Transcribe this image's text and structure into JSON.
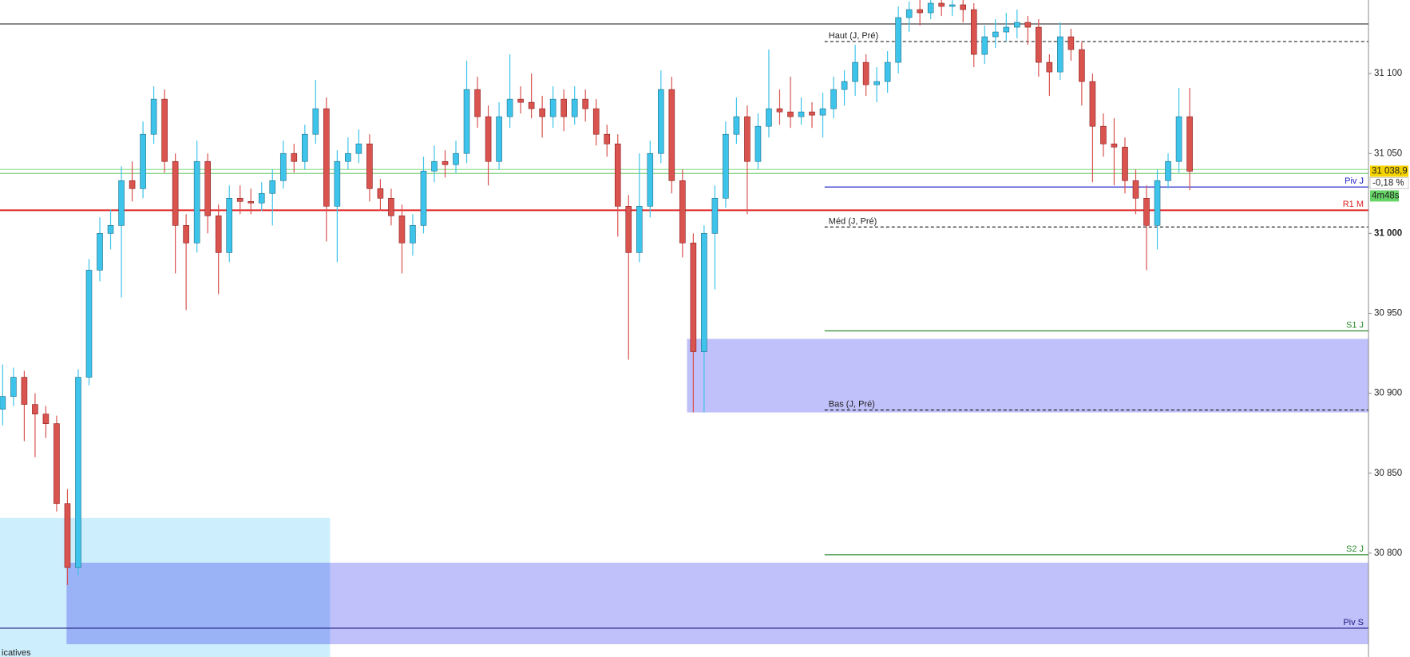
{
  "chart_data": {
    "type": "candlestick",
    "ylim": [
      30735,
      31146
    ],
    "yticks": [
      {
        "value": 30800,
        "label": "30 800"
      },
      {
        "value": 30850,
        "label": "30 850"
      },
      {
        "value": 30900,
        "label": "30 900"
      },
      {
        "value": 30950,
        "label": "30 950"
      },
      {
        "value": 31000,
        "label": "31 000"
      },
      {
        "value": 31050,
        "label": "31 050"
      },
      {
        "value": 31100,
        "label": "31 100"
      }
    ],
    "up_color": "#3ec4ea",
    "down_color": "#d9534f",
    "ohlc": [
      [
        30890,
        30918,
        30880,
        30898
      ],
      [
        30898,
        30916,
        30892,
        30910
      ],
      [
        30910,
        30914,
        30870,
        30893
      ],
      [
        30893,
        30900,
        30860,
        30887
      ],
      [
        30887,
        30892,
        30872,
        30881
      ],
      [
        30881,
        30886,
        30826,
        30831
      ],
      [
        30831,
        30840,
        30780,
        30791
      ],
      [
        30791,
        30915,
        30786,
        30910
      ],
      [
        30910,
        30984,
        30905,
        30977
      ],
      [
        30977,
        31010,
        30970,
        31000
      ],
      [
        31000,
        31015,
        30990,
        31005
      ],
      [
        31005,
        31042,
        30960,
        31033
      ],
      [
        31033,
        31045,
        31020,
        31028
      ],
      [
        31028,
        31070,
        31022,
        31062
      ],
      [
        31062,
        31092,
        31056,
        31084
      ],
      [
        31084,
        31090,
        31038,
        31045
      ],
      [
        31045,
        31050,
        30975,
        31005
      ],
      [
        31005,
        31012,
        30952,
        30994
      ],
      [
        30994,
        31058,
        30988,
        31045
      ],
      [
        31045,
        31050,
        31000,
        31011
      ],
      [
        31011,
        31018,
        30962,
        30988
      ],
      [
        30988,
        31030,
        30982,
        31022
      ],
      [
        31022,
        31030,
        31012,
        31020
      ],
      [
        31020,
        31028,
        31012,
        31019
      ],
      [
        31019,
        31032,
        31014,
        31025
      ],
      [
        31025,
        31040,
        31005,
        31033
      ],
      [
        31033,
        31058,
        31028,
        31050
      ],
      [
        31050,
        31056,
        31038,
        31045
      ],
      [
        31045,
        31068,
        31040,
        31062
      ],
      [
        31062,
        31096,
        31056,
        31078
      ],
      [
        31078,
        31085,
        30995,
        31017
      ],
      [
        31017,
        31052,
        30982,
        31045
      ],
      [
        31045,
        31060,
        31040,
        31050
      ],
      [
        31050,
        31065,
        31044,
        31056
      ],
      [
        31056,
        31062,
        31020,
        31028
      ],
      [
        31028,
        31034,
        31014,
        31022
      ],
      [
        31022,
        31028,
        31005,
        31011
      ],
      [
        31011,
        31018,
        30975,
        30994
      ],
      [
        30994,
        31012,
        30986,
        31005
      ],
      [
        31005,
        31048,
        31000,
        31039
      ],
      [
        31039,
        31055,
        31032,
        31045
      ],
      [
        31045,
        31052,
        31035,
        31043
      ],
      [
        31043,
        31058,
        31038,
        31050
      ],
      [
        31050,
        31108,
        31044,
        31090
      ],
      [
        31090,
        31098,
        31066,
        31073
      ],
      [
        31073,
        31080,
        31030,
        31045
      ],
      [
        31045,
        31082,
        31040,
        31073
      ],
      [
        31073,
        31112,
        31066,
        31084
      ],
      [
        31084,
        31092,
        31075,
        31082
      ],
      [
        31082,
        31100,
        31072,
        31078
      ],
      [
        31078,
        31086,
        31060,
        31073
      ],
      [
        31073,
        31092,
        31066,
        31084
      ],
      [
        31084,
        31090,
        31064,
        31073
      ],
      [
        31073,
        31092,
        31068,
        31084
      ],
      [
        31084,
        31090,
        31070,
        31078
      ],
      [
        31078,
        31084,
        31055,
        31062
      ],
      [
        31062,
        31068,
        31048,
        31056
      ],
      [
        31056,
        31062,
        30998,
        31017
      ],
      [
        31017,
        31024,
        30921,
        30988
      ],
      [
        30988,
        31050,
        30982,
        31017
      ],
      [
        31017,
        31058,
        31010,
        31050
      ],
      [
        31050,
        31102,
        31044,
        31090
      ],
      [
        31090,
        31098,
        31025,
        31033
      ],
      [
        31033,
        31040,
        30985,
        30994
      ],
      [
        30994,
        31000,
        30888,
        30926
      ],
      [
        30926,
        31005,
        30888,
        31000
      ],
      [
        31000,
        31030,
        30965,
        31022
      ],
      [
        31022,
        31070,
        31016,
        31062
      ],
      [
        31062,
        31085,
        31056,
        31073
      ],
      [
        31073,
        31080,
        31012,
        31045
      ],
      [
        31045,
        31075,
        31040,
        31067
      ],
      [
        31067,
        31115,
        31060,
        31078
      ],
      [
        31078,
        31090,
        31068,
        31076
      ],
      [
        31076,
        31098,
        31066,
        31073
      ],
      [
        31073,
        31085,
        31068,
        31076
      ],
      [
        31076,
        31082,
        31066,
        31074
      ],
      [
        31074,
        31088,
        31060,
        31078
      ],
      [
        31078,
        31098,
        31072,
        31090
      ],
      [
        31090,
        31102,
        31080,
        31095
      ],
      [
        31095,
        31118,
        31086,
        31107
      ],
      [
        31107,
        31112,
        31086,
        31093
      ],
      [
        31093,
        31104,
        31082,
        31095
      ],
      [
        31095,
        31114,
        31088,
        31107
      ],
      [
        31107,
        31142,
        31100,
        31135
      ],
      [
        31135,
        31145,
        31126,
        31140
      ],
      [
        31140,
        31146,
        31130,
        31138
      ],
      [
        31138,
        31146,
        31134,
        31144
      ],
      [
        31144,
        31146,
        31136,
        31142
      ],
      [
        31142,
        31146,
        31136,
        31143
      ],
      [
        31143,
        31146,
        31132,
        31140
      ],
      [
        31140,
        31144,
        31104,
        31112
      ],
      [
        31112,
        31130,
        31106,
        31123
      ],
      [
        31123,
        31134,
        31116,
        31126
      ],
      [
        31126,
        31138,
        31120,
        31129
      ],
      [
        31129,
        31140,
        31122,
        31132
      ],
      [
        31132,
        31136,
        31118,
        31129
      ],
      [
        31129,
        31134,
        31098,
        31107
      ],
      [
        31107,
        31112,
        31086,
        31101
      ],
      [
        31101,
        31132,
        31096,
        31123
      ],
      [
        31123,
        31128,
        31108,
        31115
      ],
      [
        31115,
        31120,
        31080,
        31095
      ],
      [
        31095,
        31100,
        31032,
        31067
      ],
      [
        31067,
        31075,
        31048,
        31056
      ],
      [
        31056,
        31072,
        31030,
        31054
      ],
      [
        31054,
        31060,
        31025,
        31033
      ],
      [
        31033,
        31040,
        31012,
        31022
      ],
      [
        31022,
        31030,
        30977,
        31005
      ],
      [
        31005,
        31040,
        30990,
        31033
      ],
      [
        31033,
        31050,
        31028,
        31045
      ],
      [
        31045,
        31091,
        31038,
        31073
      ],
      [
        31073,
        31091,
        31027,
        31038.9
      ]
    ],
    "zones": [
      {
        "from": 30822,
        "to": 30735,
        "color": "#cdeefc"
      },
      {
        "from": 30934,
        "to": 30888,
        "color": "#c0c0fa"
      },
      {
        "from": 30794,
        "to": 30743,
        "color": "#c0c0fa"
      }
    ],
    "levels": [
      {
        "value": 31131,
        "color": "#444444"
      },
      {
        "label": "Haut (J, Pré)",
        "value": 31120,
        "color": "#222222",
        "dashed": true
      },
      {
        "value": 31040,
        "color": "#9be39b"
      },
      {
        "value": 31037.5,
        "color": "#7fd07f"
      },
      {
        "label": "Piv J",
        "value": 31029,
        "color": "#2222cc"
      },
      {
        "label": "R1 M",
        "value": 31014.5,
        "color": "#e02020"
      },
      {
        "label": "Méd (J, Pré)",
        "value": 31004,
        "color": "#222222",
        "dashed": true
      },
      {
        "label": "S1 J",
        "value": 30939,
        "color": "#2e8b2e"
      },
      {
        "label": "Bas (J, Pré)",
        "value": 30889.5,
        "color": "#222222",
        "dashed": true
      },
      {
        "label": "S2 J",
        "value": 30799,
        "color": "#2e8b2e"
      },
      {
        "label": "Piv S",
        "value": 30753,
        "color": "#1a1a80"
      }
    ],
    "last_price": {
      "value": 31038.9,
      "label": "31 038,9"
    },
    "change": {
      "value": -0.18,
      "label": "-0,18 %"
    },
    "countdown": "4m48s",
    "footer_text": "icatives"
  }
}
